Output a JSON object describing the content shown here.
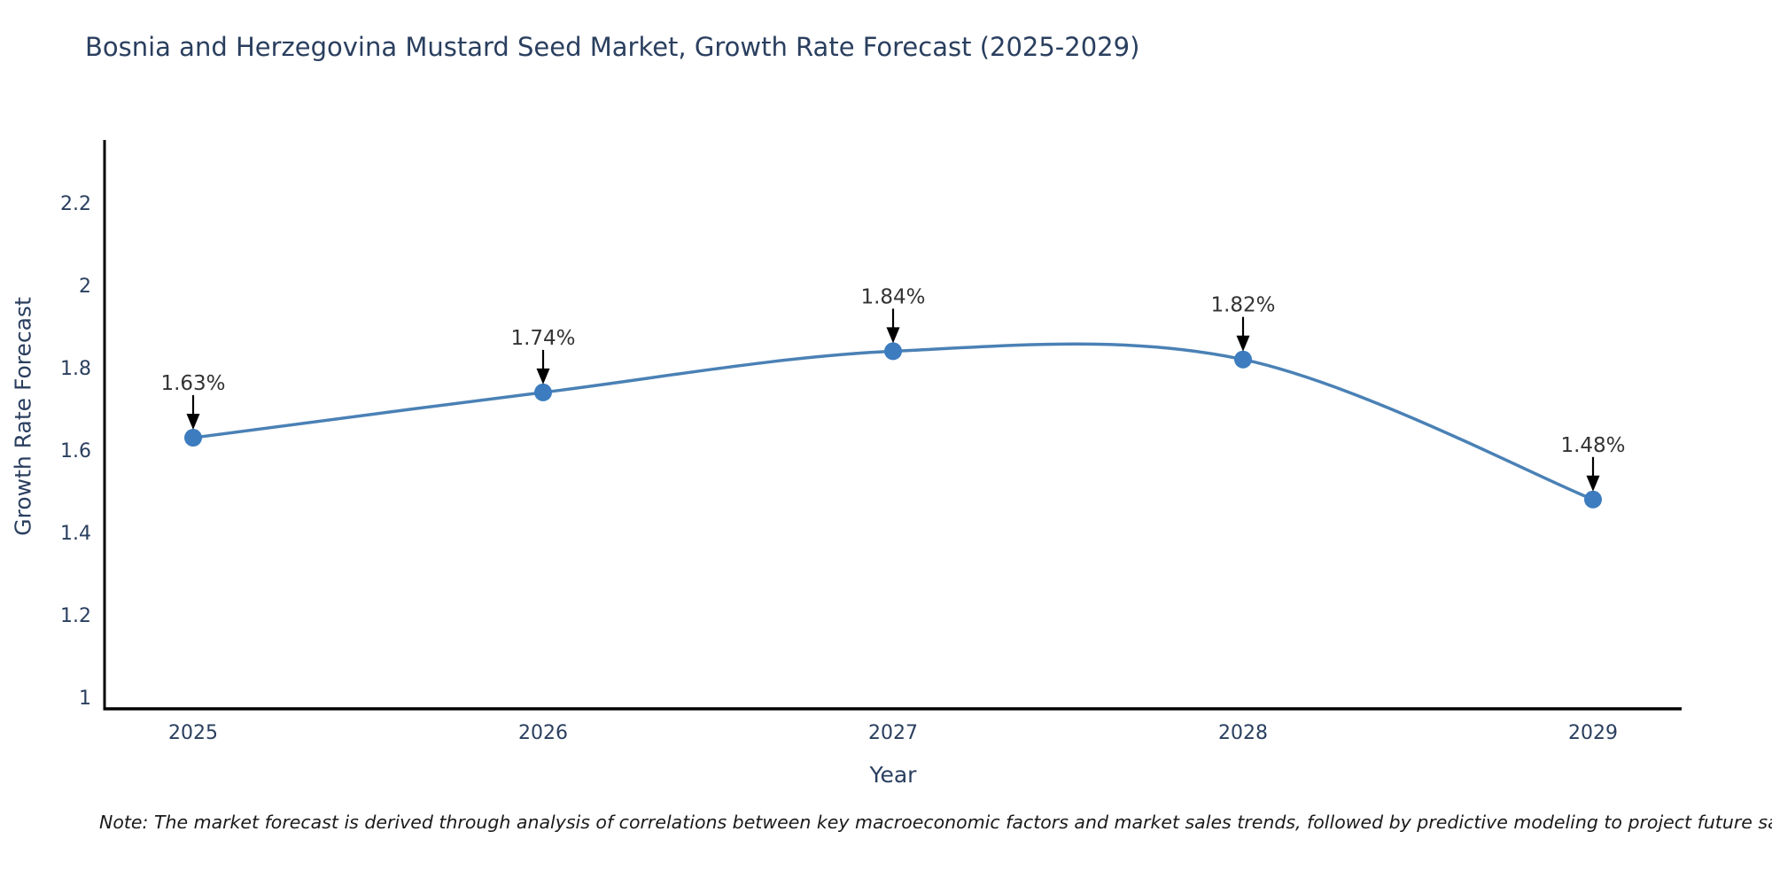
{
  "title": "Bosnia and Herzegovina Mustard Seed Market, Growth Rate Forecast (2025-2029)",
  "note": "Note: The market forecast is derived through analysis of correlations between key macroeconomic factors and market sales trends, followed by predictive modeling to project future sales",
  "chart_data": {
    "type": "line",
    "title": "Bosnia and Herzegovina Mustard Seed Market, Growth Rate Forecast (2025-2029)",
    "xlabel": "Year",
    "ylabel": "Growth Rate Forecast",
    "x": [
      "2025",
      "2026",
      "2027",
      "2028",
      "2029"
    ],
    "series": [
      {
        "name": "Growth Rate Forecast",
        "values": [
          1.63,
          1.74,
          1.84,
          1.82,
          1.48
        ]
      }
    ],
    "point_labels": [
      "1.63%",
      "1.74%",
      "1.84%",
      "1.82%",
      "1.48%"
    ],
    "yticks": [
      1,
      1.2,
      1.4,
      1.6,
      1.8,
      2,
      2.2
    ],
    "ylim": [
      0.97,
      2.35
    ],
    "line_shape": "spline",
    "grid": false,
    "legend": "none",
    "colors": {
      "line": "#4a81b5",
      "marker": "#3c7cbf",
      "axis": "#000000",
      "tick_label": "#2a3f5f",
      "title": "#2a3f5f",
      "annotation_text": "#333333",
      "annotation_arrow": "#000000",
      "background": "#ffffff"
    }
  }
}
